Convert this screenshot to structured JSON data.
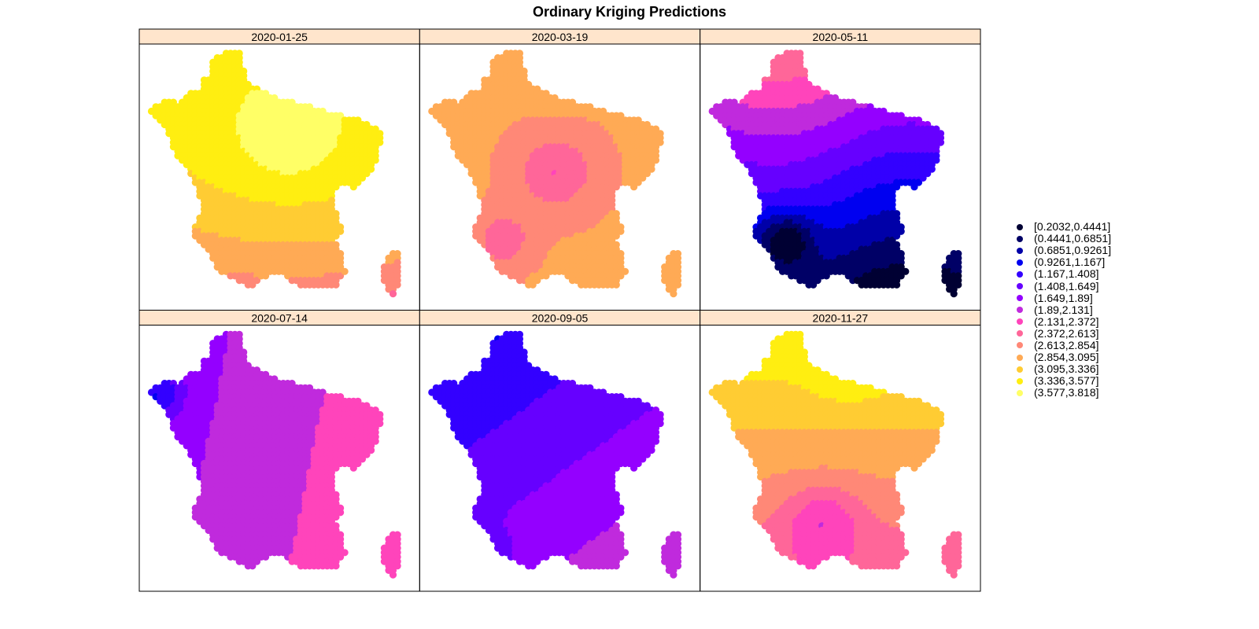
{
  "page": {
    "title": "Ordinary Kriging Predictions"
  },
  "chart_data": {
    "type": "heatmap",
    "title": "Ordinary Kriging Predictions",
    "xlabel": "",
    "ylabel": "",
    "grid": false,
    "legend_position": "right",
    "panels": [
      {
        "label": "2020-01-25",
        "range": [
          2.613,
          3.818
        ]
      },
      {
        "label": "2020-03-19",
        "range": [
          2.372,
          3.095
        ]
      },
      {
        "label": "2020-05-11",
        "range": [
          0.2032,
          2.613
        ]
      },
      {
        "label": "2020-07-14",
        "range": [
          1.167,
          2.372
        ]
      },
      {
        "label": "2020-09-05",
        "range": [
          1.167,
          2.131
        ]
      },
      {
        "label": "2020-11-27",
        "range": [
          2.131,
          3.577
        ]
      }
    ],
    "legend": [
      {
        "label": "[0.2032,0.4441]",
        "color": "#000033"
      },
      {
        "label": "(0.4441,0.6851]",
        "color": "#000066"
      },
      {
        "label": "(0.6851,0.9261]",
        "color": "#0000A8"
      },
      {
        "label": "(0.9261,1.167]",
        "color": "#0000F0"
      },
      {
        "label": "(1.167,1.408]",
        "color": "#3300FF"
      },
      {
        "label": "(1.408,1.649]",
        "color": "#6600FF"
      },
      {
        "label": "(1.649,1.89]",
        "color": "#9400FF"
      },
      {
        "label": "(1.89,2.131]",
        "color": "#C02ADD"
      },
      {
        "label": "(2.131,2.372]",
        "color": "#FF44BB"
      },
      {
        "label": "(2.372,2.613]",
        "color": "#FF6699"
      },
      {
        "label": "(2.613,2.854]",
        "color": "#FF8877"
      },
      {
        "label": "(2.854,3.095]",
        "color": "#FFAA55"
      },
      {
        "label": "(3.095,3.336]",
        "color": "#FFCC33"
      },
      {
        "label": "(3.336,3.577]",
        "color": "#FFEE11"
      },
      {
        "label": "(3.577,3.818]",
        "color": "#FFFF66"
      }
    ]
  }
}
